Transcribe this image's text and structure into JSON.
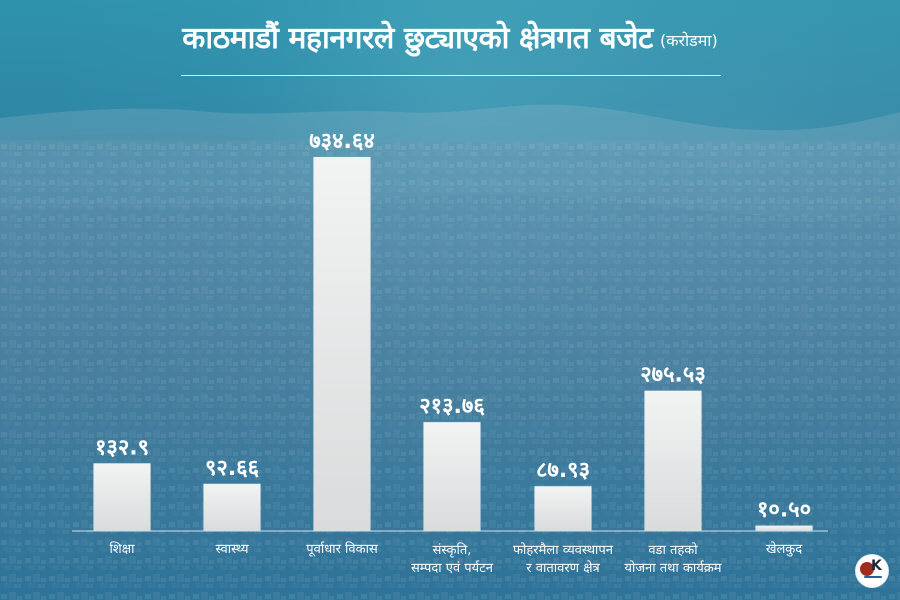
{
  "chart_data": {
    "type": "bar",
    "title": "काठमाडौं महानगरले छुट्याएको क्षेत्रगत बजेट",
    "ylabel": "(करोडमा)",
    "categories": [
      [
        "शिक्षा"
      ],
      [
        "स्वास्थ्य"
      ],
      [
        "पूर्वाधार विकास"
      ],
      [
        "संस्कृति,",
        "सम्पदा एवं पर्यटन"
      ],
      [
        "फोहरमैला व्यवस्थापन",
        "र वातावरण क्षेत्र"
      ],
      [
        "वडा तहको",
        "योजना तथा कार्यक्रम"
      ],
      [
        "खेलकुद"
      ]
    ],
    "values": [
      132.9,
      92.66,
      734.64,
      213.76,
      87.93,
      275.53,
      10.5
    ],
    "value_labels": [
      "१३२.९",
      "९२.६६",
      "७३४.६४",
      "२१३.७६",
      "८७.९३",
      "२७५.५३",
      "१०.५०"
    ],
    "ylim": [
      0,
      734.64
    ],
    "grid": false,
    "legend": "none",
    "colors": {
      "bar_top": "#f2f3f3",
      "bar_bottom": "#d9dbdc",
      "text": "#ffffff",
      "baseline": "#ffffff"
    }
  }
}
